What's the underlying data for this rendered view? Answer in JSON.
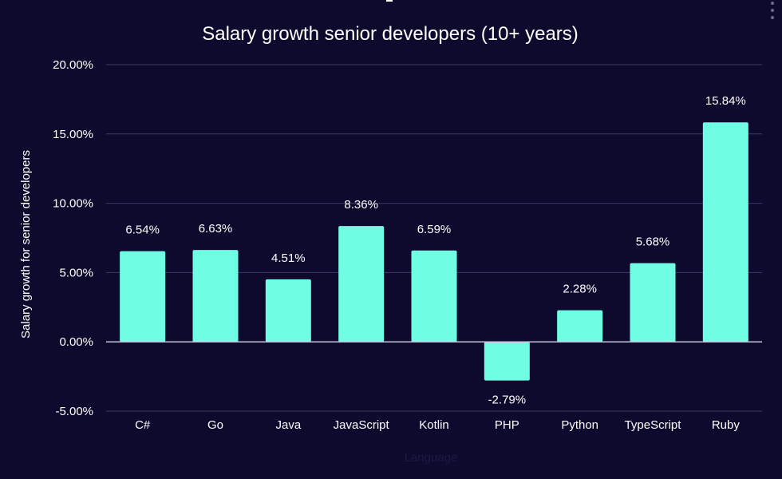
{
  "chart_data": {
    "type": "bar",
    "title": "Salary growth senior developers (10+ years)",
    "xlabel": "Language",
    "ylabel": "Salary growth for senior developers",
    "categories": [
      "C#",
      "Go",
      "Java",
      "JavaScript",
      "Kotlin",
      "PHP",
      "Python",
      "TypeScript",
      "Ruby"
    ],
    "values": [
      6.54,
      6.63,
      4.51,
      8.36,
      6.59,
      -2.79,
      2.28,
      5.68,
      15.84
    ],
    "value_labels": [
      "6.54%",
      "6.63%",
      "4.51%",
      "8.36%",
      "6.59%",
      "-2.79%",
      "2.28%",
      "5.68%",
      "15.84%"
    ],
    "ylim": [
      -5,
      20
    ],
    "yticks": [
      -5,
      0,
      5,
      10,
      15,
      20
    ],
    "ytick_labels": [
      "-5.00%",
      "0.00%",
      "5.00%",
      "10.00%",
      "15.00%",
      "20.00%"
    ],
    "grid": true,
    "legend": "none"
  },
  "colors": {
    "background": "#0d0a2e",
    "bar": "#6ffde3",
    "grid": "#3e3a62",
    "zero_line": "#c8c6d8",
    "text": "#ffffff",
    "axis_title": "#1c1a40"
  },
  "icons": {
    "menu": "kebab-menu-icon"
  }
}
